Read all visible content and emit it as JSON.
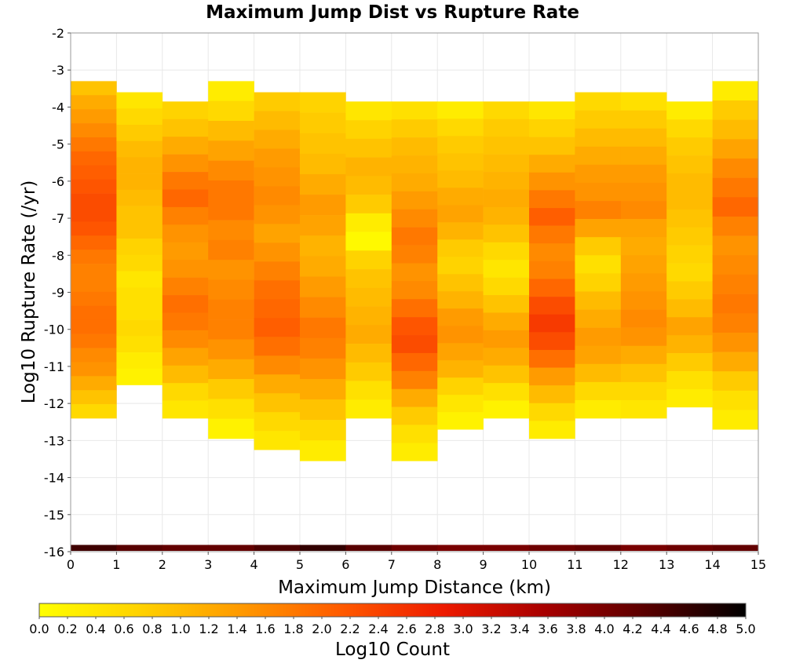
{
  "chart_data": {
    "type": "heatmap",
    "title": "Maximum Jump Dist vs Rupture Rate",
    "xlabel": "Maximum Jump Distance (km)",
    "ylabel": "Log10 Rupture Rate (/yr)",
    "xlim": [
      0,
      15
    ],
    "ylim": [
      -16,
      -2
    ],
    "x_ticks": [
      "0",
      "1",
      "2",
      "3",
      "4",
      "5",
      "6",
      "7",
      "8",
      "9",
      "10",
      "11",
      "12",
      "13",
      "14",
      "15"
    ],
    "y_ticks": [
      "-2",
      "-3",
      "-4",
      "-5",
      "-6",
      "-7",
      "-8",
      "-9",
      "-10",
      "-11",
      "-12",
      "-13",
      "-14",
      "-15",
      "-16"
    ],
    "grid": true,
    "x_bin_width": 1,
    "y_bin_height": 0.2,
    "colorbar": {
      "label": "Log10 Count",
      "min": 0.0,
      "max": 5.0,
      "ticks": [
        "0.0",
        "0.2",
        "0.4",
        "0.6",
        "0.8",
        "1.0",
        "1.2",
        "1.4",
        "1.6",
        "1.8",
        "2.0",
        "2.2",
        "2.4",
        "2.6",
        "2.8",
        "3.0",
        "3.2",
        "3.4",
        "3.6",
        "3.8",
        "4.0",
        "4.2",
        "4.4",
        "4.6",
        "4.8",
        "5.0"
      ],
      "colors": [
        "#ffff00",
        "#ffd200",
        "#ff9900",
        "#ff5a00",
        "#ee1a00",
        "#a80000",
        "#5a0000",
        "#000000"
      ]
    },
    "columns": [
      {
        "x": 0.5,
        "y_from": -3.3,
        "y_to": -12.4,
        "values": [
          0.9,
          1.2,
          1.4,
          1.6,
          1.8,
          2.0,
          2.1,
          2.2,
          2.3,
          2.3,
          2.2,
          2.0,
          1.8,
          1.7,
          1.7,
          1.8,
          1.9,
          1.9,
          1.8,
          1.6,
          1.5,
          1.2,
          0.9,
          0.6
        ]
      },
      {
        "x": 1.5,
        "y_from": -3.6,
        "y_to": -11.5,
        "values": [
          0.4,
          0.6,
          0.8,
          1.0,
          1.1,
          1.1,
          1.0,
          0.9,
          0.9,
          0.7,
          0.6,
          0.4,
          0.5,
          0.5,
          0.6,
          0.5,
          0.3,
          0.2
        ]
      },
      {
        "x": 2.5,
        "y_from": -3.85,
        "y_to": -12.4,
        "values": [
          0.7,
          0.9,
          1.2,
          1.5,
          1.8,
          2.0,
          1.7,
          1.5,
          1.4,
          1.5,
          1.7,
          1.9,
          1.8,
          1.6,
          1.3,
          1.0,
          0.6,
          0.4
        ]
      },
      {
        "x": 3.5,
        "y_from": -3.3,
        "y_to": -12.95,
        "values": [
          0.3,
          0.6,
          1.0,
          1.3,
          1.6,
          1.8,
          1.8,
          1.6,
          1.7,
          1.5,
          1.6,
          1.7,
          1.7,
          1.5,
          1.2,
          0.8,
          0.5,
          0.2
        ]
      },
      {
        "x": 4.5,
        "y_from": -3.6,
        "y_to": -13.25,
        "values": [
          0.8,
          1.0,
          1.2,
          1.4,
          1.5,
          1.6,
          1.5,
          1.3,
          1.5,
          1.7,
          1.9,
          2.0,
          2.1,
          1.9,
          1.6,
          1.2,
          0.9,
          0.6,
          0.4
        ]
      },
      {
        "x": 5.5,
        "y_from": -3.6,
        "y_to": -13.55,
        "values": [
          0.7,
          0.8,
          0.9,
          1.0,
          1.2,
          1.4,
          1.3,
          1.1,
          1.2,
          1.4,
          1.6,
          1.8,
          1.7,
          1.5,
          1.2,
          0.9,
          0.6,
          0.3
        ]
      },
      {
        "x": 6.5,
        "y_from": -3.85,
        "y_to": -12.4,
        "values": [
          0.4,
          0.7,
          0.9,
          1.1,
          1.0,
          0.8,
          0.3,
          0.1,
          0.7,
          0.9,
          1.0,
          1.1,
          1.2,
          1.0,
          0.8,
          0.5,
          0.3
        ]
      },
      {
        "x": 7.5,
        "y_from": -3.85,
        "y_to": -13.55,
        "values": [
          0.5,
          0.8,
          1.0,
          1.1,
          1.2,
          1.4,
          1.6,
          1.8,
          1.7,
          1.5,
          1.6,
          1.9,
          2.2,
          2.3,
          2.0,
          1.7,
          1.2,
          0.8,
          0.5,
          0.3
        ]
      },
      {
        "x": 8.5,
        "y_from": -3.85,
        "y_to": -12.7,
        "values": [
          0.3,
          0.6,
          0.8,
          0.9,
          1.0,
          1.2,
          1.3,
          1.1,
          0.8,
          0.7,
          0.9,
          1.1,
          1.4,
          1.5,
          1.3,
          1.1,
          0.7,
          0.4,
          0.2
        ]
      },
      {
        "x": 9.5,
        "y_from": -3.85,
        "y_to": -12.4,
        "values": [
          0.6,
          0.8,
          0.9,
          1.0,
          1.1,
          1.2,
          1.1,
          0.9,
          0.6,
          0.4,
          0.6,
          0.9,
          1.2,
          1.4,
          1.2,
          0.9,
          0.5,
          0.2
        ]
      },
      {
        "x": 10.5,
        "y_from": -3.85,
        "y_to": -12.95,
        "values": [
          0.4,
          0.7,
          0.9,
          1.2,
          1.5,
          1.8,
          2.1,
          1.8,
          1.6,
          1.7,
          2.0,
          2.3,
          2.5,
          2.3,
          1.9,
          1.4,
          1.0,
          0.6,
          0.3
        ]
      },
      {
        "x": 11.5,
        "y_from": -3.6,
        "y_to": -12.4,
        "values": [
          0.6,
          0.8,
          1.0,
          1.2,
          1.4,
          1.5,
          1.7,
          1.3,
          0.8,
          0.5,
          0.7,
          1.0,
          1.2,
          1.4,
          1.3,
          1.0,
          0.6,
          0.3
        ]
      },
      {
        "x": 12.5,
        "y_from": -3.6,
        "y_to": -12.4,
        "values": [
          0.5,
          0.8,
          1.0,
          1.2,
          1.4,
          1.5,
          1.6,
          1.3,
          1.2,
          1.3,
          1.4,
          1.5,
          1.6,
          1.5,
          1.2,
          0.9,
          0.6,
          0.4
        ]
      },
      {
        "x": 13.5,
        "y_from": -3.85,
        "y_to": -12.1,
        "values": [
          0.3,
          0.6,
          0.8,
          0.9,
          1.0,
          1.0,
          0.9,
          0.8,
          0.7,
          0.6,
          0.8,
          1.0,
          1.3,
          1.1,
          0.8,
          0.5,
          0.3
        ]
      },
      {
        "x": 14.5,
        "y_from": -3.3,
        "y_to": -12.7,
        "values": [
          0.3,
          0.8,
          1.0,
          1.3,
          1.6,
          1.8,
          2.0,
          1.7,
          1.5,
          1.6,
          1.7,
          1.8,
          1.7,
          1.5,
          1.2,
          0.8,
          0.5,
          0.3
        ]
      }
    ],
    "bottom_row": {
      "y_from": -16,
      "y_to": -15.85,
      "values": [
        4.5,
        4.3,
        4.2,
        4.2,
        4.4,
        4.6,
        4.3,
        4.1,
        4.0,
        4.0,
        4.1,
        4.2,
        4.0,
        4.1,
        4.2
      ]
    }
  }
}
